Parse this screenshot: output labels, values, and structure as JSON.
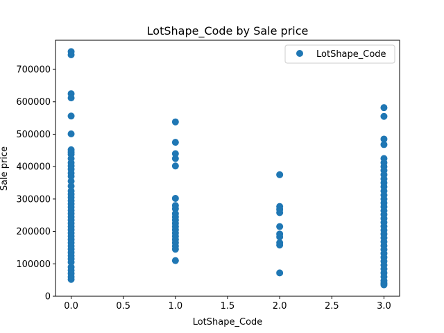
{
  "chart_data": {
    "type": "scatter",
    "title": "LotShape_Code by Sale price",
    "xlabel": "LotShape_Code",
    "ylabel": "Sale price",
    "xlim": [
      -0.15,
      3.15
    ],
    "ylim": [
      0,
      790000
    ],
    "x_ticks": [
      0.0,
      0.5,
      1.0,
      1.5,
      2.0,
      2.5,
      3.0
    ],
    "x_tick_labels": [
      "0.0",
      "0.5",
      "1.0",
      "1.5",
      "2.0",
      "2.5",
      "3.0"
    ],
    "y_ticks": [
      0,
      100000,
      200000,
      300000,
      400000,
      500000,
      600000,
      700000
    ],
    "y_tick_labels": [
      "0",
      "100000",
      "200000",
      "300000",
      "400000",
      "500000",
      "600000",
      "700000"
    ],
    "grid": false,
    "legend_position": "top-right",
    "series": [
      {
        "name": "LotShape_Code",
        "color": "#1f77b4",
        "points": [
          [
            0,
            755000
          ],
          [
            0,
            745000
          ],
          [
            0,
            625000
          ],
          [
            0,
            612000
          ],
          [
            0,
            556000
          ],
          [
            0,
            501000
          ],
          [
            0,
            452000
          ],
          [
            0,
            445000
          ],
          [
            0,
            438000
          ],
          [
            0,
            425000
          ],
          [
            0,
            412000
          ],
          [
            0,
            402000
          ],
          [
            0,
            392000
          ],
          [
            0,
            380000
          ],
          [
            0,
            370000
          ],
          [
            0,
            355000
          ],
          [
            0,
            340000
          ],
          [
            0,
            325000
          ],
          [
            0,
            315000
          ],
          [
            0,
            305000
          ],
          [
            0,
            295000
          ],
          [
            0,
            285000
          ],
          [
            0,
            275000
          ],
          [
            0,
            265000
          ],
          [
            0,
            255000
          ],
          [
            0,
            245000
          ],
          [
            0,
            235000
          ],
          [
            0,
            225000
          ],
          [
            0,
            215000
          ],
          [
            0,
            205000
          ],
          [
            0,
            195000
          ],
          [
            0,
            185000
          ],
          [
            0,
            175000
          ],
          [
            0,
            165000
          ],
          [
            0,
            155000
          ],
          [
            0,
            145000
          ],
          [
            0,
            135000
          ],
          [
            0,
            125000
          ],
          [
            0,
            115000
          ],
          [
            0,
            105000
          ],
          [
            0,
            90000
          ],
          [
            0,
            80000
          ],
          [
            0,
            70000
          ],
          [
            0,
            60000
          ],
          [
            0,
            52000
          ],
          [
            1,
            538000
          ],
          [
            1,
            475000
          ],
          [
            1,
            440000
          ],
          [
            1,
            425000
          ],
          [
            1,
            402000
          ],
          [
            1,
            302000
          ],
          [
            1,
            280000
          ],
          [
            1,
            270000
          ],
          [
            1,
            255000
          ],
          [
            1,
            245000
          ],
          [
            1,
            235000
          ],
          [
            1,
            225000
          ],
          [
            1,
            215000
          ],
          [
            1,
            205000
          ],
          [
            1,
            195000
          ],
          [
            1,
            185000
          ],
          [
            1,
            175000
          ],
          [
            1,
            165000
          ],
          [
            1,
            155000
          ],
          [
            1,
            145000
          ],
          [
            1,
            110000
          ],
          [
            2,
            375000
          ],
          [
            2,
            277000
          ],
          [
            2,
            268000
          ],
          [
            2,
            258000
          ],
          [
            2,
            215000
          ],
          [
            2,
            192000
          ],
          [
            2,
            183000
          ],
          [
            2,
            165000
          ],
          [
            2,
            158000
          ],
          [
            2,
            72000
          ],
          [
            3,
            582000
          ],
          [
            3,
            555000
          ],
          [
            3,
            485000
          ],
          [
            3,
            468000
          ],
          [
            3,
            425000
          ],
          [
            3,
            412000
          ],
          [
            3,
            400000
          ],
          [
            3,
            388000
          ],
          [
            3,
            375000
          ],
          [
            3,
            362000
          ],
          [
            3,
            350000
          ],
          [
            3,
            338000
          ],
          [
            3,
            325000
          ],
          [
            3,
            312000
          ],
          [
            3,
            300000
          ],
          [
            3,
            288000
          ],
          [
            3,
            276000
          ],
          [
            3,
            264000
          ],
          [
            3,
            252000
          ],
          [
            3,
            240000
          ],
          [
            3,
            228000
          ],
          [
            3,
            216000
          ],
          [
            3,
            204000
          ],
          [
            3,
            192000
          ],
          [
            3,
            180000
          ],
          [
            3,
            168000
          ],
          [
            3,
            156000
          ],
          [
            3,
            144000
          ],
          [
            3,
            132000
          ],
          [
            3,
            120000
          ],
          [
            3,
            108000
          ],
          [
            3,
            96000
          ],
          [
            3,
            84000
          ],
          [
            3,
            72000
          ],
          [
            3,
            60000
          ],
          [
            3,
            48000
          ],
          [
            3,
            40000
          ],
          [
            3,
            35000
          ]
        ]
      }
    ]
  }
}
